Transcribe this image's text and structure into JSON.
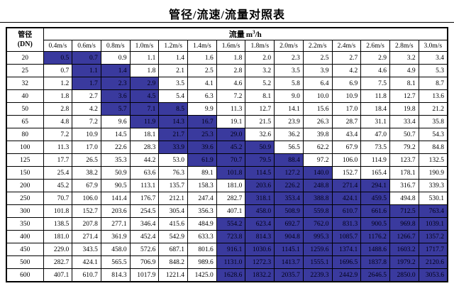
{
  "title": "管径/流速/流量对照表",
  "table": {
    "corner": {
      "line1": "管径",
      "line2": "(DN)"
    },
    "flow_header": {
      "label": "流量",
      "unit_base": "m",
      "unit_exp": "3",
      "unit_rest": "/h"
    },
    "velocities": [
      "0.4m/s",
      "0.6m/s",
      "0.8m/s",
      "1.0m/s",
      "1.2m/s",
      "1.4m/s",
      "1.6m/s",
      "1.8m/s",
      "2.0m/s",
      "2.2m/s",
      "2.4m/s",
      "2.6m/s",
      "2.8m/s",
      "3.0m/s"
    ],
    "highlight_color": "#3a3a9e",
    "rows": [
      {
        "dn": "20",
        "hl": [
          0,
          1
        ],
        "values": [
          "0.5",
          "0.7",
          "0.9",
          "1.1",
          "1.4",
          "1.6",
          "1.8",
          "2.0",
          "2.3",
          "2.5",
          "2.7",
          "2.9",
          "3.2",
          "3.4"
        ]
      },
      {
        "dn": "25",
        "hl": [
          1,
          2
        ],
        "values": [
          "0.7",
          "1.1",
          "1.4",
          "1.8",
          "2.1",
          "2.5",
          "2.8",
          "3.2",
          "3.5",
          "3.9",
          "4.2",
          "4.6",
          "4.9",
          "5.3"
        ]
      },
      {
        "dn": "32",
        "hl": [
          1,
          3
        ],
        "values": [
          "1.2",
          "1.7",
          "2.3",
          "2.9",
          "3.5",
          "4.1",
          "4.6",
          "5.2",
          "5.8",
          "6.4",
          "6.9",
          "7.5",
          "8.1",
          "8.7"
        ]
      },
      {
        "dn": "40",
        "hl": [
          2,
          3
        ],
        "values": [
          "1.8",
          "2.7",
          "3.6",
          "4.5",
          "5.4",
          "6.3",
          "7.2",
          "8.1",
          "9.0",
          "10.0",
          "10.9",
          "11.8",
          "12.7",
          "13.6"
        ]
      },
      {
        "dn": "50",
        "hl": [
          2,
          4
        ],
        "values": [
          "2.8",
          "4.2",
          "5.7",
          "7.1",
          "8.5",
          "9.9",
          "11.3",
          "12.7",
          "14.1",
          "15.6",
          "17.0",
          "18.4",
          "19.8",
          "21.2"
        ]
      },
      {
        "dn": "65",
        "hl": [
          3,
          5
        ],
        "values": [
          "4.8",
          "7.2",
          "9.6",
          "11.9",
          "14.3",
          "16.7",
          "19.1",
          "21.5",
          "23.9",
          "26.3",
          "28.7",
          "31.1",
          "33.4",
          "35.8"
        ]
      },
      {
        "dn": "80",
        "hl": [
          4,
          6
        ],
        "values": [
          "7.2",
          "10.9",
          "14.5",
          "18.1",
          "21.7",
          "25.3",
          "29.0",
          "32.6",
          "36.2",
          "39.8",
          "43.4",
          "47.0",
          "50.7",
          "54.3"
        ]
      },
      {
        "dn": "100",
        "hl": [
          4,
          7
        ],
        "values": [
          "11.3",
          "17.0",
          "22.6",
          "28.3",
          "33.9",
          "39.6",
          "45.2",
          "50.9",
          "56.5",
          "62.2",
          "67.9",
          "73.5",
          "79.2",
          "84.8"
        ]
      },
      {
        "dn": "125",
        "hl": [
          5,
          8
        ],
        "values": [
          "17.7",
          "26.5",
          "35.3",
          "44.2",
          "53.0",
          "61.9",
          "70.7",
          "79.5",
          "88.4",
          "97.2",
          "106.0",
          "114.9",
          "123.7",
          "132.5"
        ]
      },
      {
        "dn": "150",
        "hl": [
          6,
          9
        ],
        "values": [
          "25.4",
          "38.2",
          "50.9",
          "63.6",
          "76.3",
          "89.1",
          "101.8",
          "114.5",
          "127.2",
          "140.0",
          "152.7",
          "165.4",
          "178.1",
          "190.9"
        ]
      },
      {
        "dn": "200",
        "hl": [
          7,
          11
        ],
        "values": [
          "45.2",
          "67.9",
          "90.5",
          "113.1",
          "135.7",
          "158.3",
          "181.0",
          "203.6",
          "226.2",
          "248.8",
          "271.4",
          "294.1",
          "316.7",
          "339.3"
        ]
      },
      {
        "dn": "250",
        "hl": [
          7,
          11
        ],
        "values": [
          "70.7",
          "106.0",
          "141.4",
          "176.7",
          "212.1",
          "247.4",
          "282.7",
          "318.1",
          "353.4",
          "388.8",
          "424.1",
          "459.5",
          "494.8",
          "530.1"
        ]
      },
      {
        "dn": "300",
        "hl": [
          7,
          13
        ],
        "values": [
          "101.8",
          "152.7",
          "203.6",
          "254.5",
          "305.4",
          "356.3",
          "407.1",
          "458.0",
          "508.9",
          "559.8",
          "610.7",
          "661.6",
          "712.5",
          "763.4"
        ]
      },
      {
        "dn": "350",
        "hl": [
          6,
          13
        ],
        "values": [
          "138.5",
          "207.8",
          "277.1",
          "346.4",
          "415.6",
          "484.9",
          "554.2",
          "623.4",
          "692.7",
          "762.0",
          "831.3",
          "900.5",
          "969.8",
          "1039.1"
        ]
      },
      {
        "dn": "400",
        "hl": [
          6,
          13
        ],
        "values": [
          "181.0",
          "271.4",
          "361.9",
          "452.4",
          "542.9",
          "633.3",
          "723.8",
          "814.3",
          "904.8",
          "995.3",
          "1085.7",
          "1176.2",
          "1266.7",
          "1357.2"
        ]
      },
      {
        "dn": "450",
        "hl": [
          6,
          13
        ],
        "values": [
          "229.0",
          "343.5",
          "458.0",
          "572.6",
          "687.1",
          "801.6",
          "916.1",
          "1030.6",
          "1145.1",
          "1259.6",
          "1374.1",
          "1488.6",
          "1603.2",
          "1717.7"
        ]
      },
      {
        "dn": "500",
        "hl": [
          6,
          13
        ],
        "values": [
          "282.7",
          "424.1",
          "565.5",
          "706.9",
          "848.2",
          "989.6",
          "1131.0",
          "1272.3",
          "1413.7",
          "1555.1",
          "1696.5",
          "1837.8",
          "1979.2",
          "2120.6"
        ]
      },
      {
        "dn": "600",
        "hl": [
          6,
          13
        ],
        "values": [
          "407.1",
          "610.7",
          "814.3",
          "1017.9",
          "1221.4",
          "1425.0",
          "1628.6",
          "1832.2",
          "2035.7",
          "2239.3",
          "2442.9",
          "2646.5",
          "2850.0",
          "3053.6"
        ]
      }
    ]
  }
}
